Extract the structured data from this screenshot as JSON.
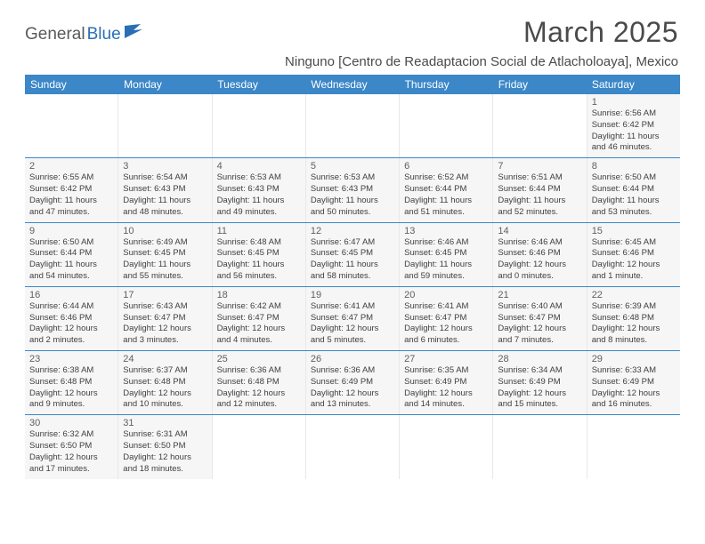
{
  "logo": {
    "part1": "General",
    "part2": "Blue"
  },
  "title": "March 2025",
  "location": "Ninguno [Centro de Readaptacion Social de Atlacholoaya], Mexico",
  "colors": {
    "header_bg": "#3b87c8",
    "header_text": "#ffffff",
    "cell_bg": "#f6f6f6",
    "border": "#3b87c8",
    "logo_gray": "#5a5a5a",
    "logo_blue": "#2a6fb4"
  },
  "day_names": [
    "Sunday",
    "Monday",
    "Tuesday",
    "Wednesday",
    "Thursday",
    "Friday",
    "Saturday"
  ],
  "weeks": [
    [
      null,
      null,
      null,
      null,
      null,
      null,
      {
        "n": "1",
        "sr": "6:56 AM",
        "ss": "6:42 PM",
        "dl": "11 hours and 46 minutes."
      }
    ],
    [
      {
        "n": "2",
        "sr": "6:55 AM",
        "ss": "6:42 PM",
        "dl": "11 hours and 47 minutes."
      },
      {
        "n": "3",
        "sr": "6:54 AM",
        "ss": "6:43 PM",
        "dl": "11 hours and 48 minutes."
      },
      {
        "n": "4",
        "sr": "6:53 AM",
        "ss": "6:43 PM",
        "dl": "11 hours and 49 minutes."
      },
      {
        "n": "5",
        "sr": "6:53 AM",
        "ss": "6:43 PM",
        "dl": "11 hours and 50 minutes."
      },
      {
        "n": "6",
        "sr": "6:52 AM",
        "ss": "6:44 PM",
        "dl": "11 hours and 51 minutes."
      },
      {
        "n": "7",
        "sr": "6:51 AM",
        "ss": "6:44 PM",
        "dl": "11 hours and 52 minutes."
      },
      {
        "n": "8",
        "sr": "6:50 AM",
        "ss": "6:44 PM",
        "dl": "11 hours and 53 minutes."
      }
    ],
    [
      {
        "n": "9",
        "sr": "6:50 AM",
        "ss": "6:44 PM",
        "dl": "11 hours and 54 minutes."
      },
      {
        "n": "10",
        "sr": "6:49 AM",
        "ss": "6:45 PM",
        "dl": "11 hours and 55 minutes."
      },
      {
        "n": "11",
        "sr": "6:48 AM",
        "ss": "6:45 PM",
        "dl": "11 hours and 56 minutes."
      },
      {
        "n": "12",
        "sr": "6:47 AM",
        "ss": "6:45 PM",
        "dl": "11 hours and 58 minutes."
      },
      {
        "n": "13",
        "sr": "6:46 AM",
        "ss": "6:45 PM",
        "dl": "11 hours and 59 minutes."
      },
      {
        "n": "14",
        "sr": "6:46 AM",
        "ss": "6:46 PM",
        "dl": "12 hours and 0 minutes."
      },
      {
        "n": "15",
        "sr": "6:45 AM",
        "ss": "6:46 PM",
        "dl": "12 hours and 1 minute."
      }
    ],
    [
      {
        "n": "16",
        "sr": "6:44 AM",
        "ss": "6:46 PM",
        "dl": "12 hours and 2 minutes."
      },
      {
        "n": "17",
        "sr": "6:43 AM",
        "ss": "6:47 PM",
        "dl": "12 hours and 3 minutes."
      },
      {
        "n": "18",
        "sr": "6:42 AM",
        "ss": "6:47 PM",
        "dl": "12 hours and 4 minutes."
      },
      {
        "n": "19",
        "sr": "6:41 AM",
        "ss": "6:47 PM",
        "dl": "12 hours and 5 minutes."
      },
      {
        "n": "20",
        "sr": "6:41 AM",
        "ss": "6:47 PM",
        "dl": "12 hours and 6 minutes."
      },
      {
        "n": "21",
        "sr": "6:40 AM",
        "ss": "6:47 PM",
        "dl": "12 hours and 7 minutes."
      },
      {
        "n": "22",
        "sr": "6:39 AM",
        "ss": "6:48 PM",
        "dl": "12 hours and 8 minutes."
      }
    ],
    [
      {
        "n": "23",
        "sr": "6:38 AM",
        "ss": "6:48 PM",
        "dl": "12 hours and 9 minutes."
      },
      {
        "n": "24",
        "sr": "6:37 AM",
        "ss": "6:48 PM",
        "dl": "12 hours and 10 minutes."
      },
      {
        "n": "25",
        "sr": "6:36 AM",
        "ss": "6:48 PM",
        "dl": "12 hours and 12 minutes."
      },
      {
        "n": "26",
        "sr": "6:36 AM",
        "ss": "6:49 PM",
        "dl": "12 hours and 13 minutes."
      },
      {
        "n": "27",
        "sr": "6:35 AM",
        "ss": "6:49 PM",
        "dl": "12 hours and 14 minutes."
      },
      {
        "n": "28",
        "sr": "6:34 AM",
        "ss": "6:49 PM",
        "dl": "12 hours and 15 minutes."
      },
      {
        "n": "29",
        "sr": "6:33 AM",
        "ss": "6:49 PM",
        "dl": "12 hours and 16 minutes."
      }
    ],
    [
      {
        "n": "30",
        "sr": "6:32 AM",
        "ss": "6:50 PM",
        "dl": "12 hours and 17 minutes."
      },
      {
        "n": "31",
        "sr": "6:31 AM",
        "ss": "6:50 PM",
        "dl": "12 hours and 18 minutes."
      },
      null,
      null,
      null,
      null,
      null
    ]
  ],
  "labels": {
    "sunrise": "Sunrise:",
    "sunset": "Sunset:",
    "daylight": "Daylight:"
  }
}
